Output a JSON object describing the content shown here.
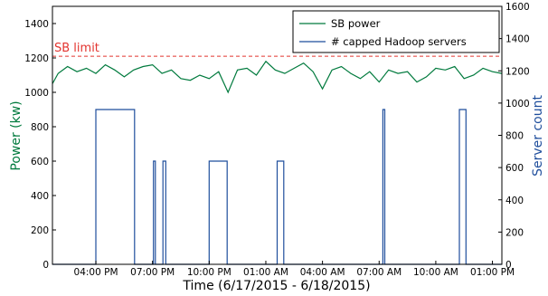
{
  "chart_data": {
    "type": "line",
    "xlabel": "Time (6/17/2015 - 6/18/2015)",
    "ylabel": "Power (kw)",
    "y2label": "Server count",
    "x_ticks": [
      "04:00 PM",
      "07:00 PM",
      "10:00 PM",
      "01:00 AM",
      "04:00 AM",
      "07:00 AM",
      "10:00 AM",
      "01:00 PM"
    ],
    "x_tick_hours": [
      16,
      19,
      22,
      25,
      28,
      31,
      34,
      37
    ],
    "xlim_hours": [
      13.7,
      37.5
    ],
    "ylim": [
      0,
      1500
    ],
    "y_ticks": [
      0,
      200,
      400,
      600,
      800,
      1000,
      1200,
      1400
    ],
    "y2lim": [
      0,
      1600
    ],
    "y2_ticks": [
      0,
      200,
      400,
      600,
      800,
      1000,
      1200,
      1400,
      1600
    ],
    "grid": false,
    "legend_position": "top-right",
    "annotation": {
      "text": "SB limit",
      "value": 1210
    },
    "colors": {
      "power": "#007a3d",
      "capped": "#1f4e9c",
      "limit": "#e3342f"
    },
    "series": [
      {
        "name": "SB power",
        "axis": "left",
        "x_hours": [
          13.7,
          14.0,
          14.5,
          15.0,
          15.5,
          16.0,
          16.5,
          17.0,
          17.5,
          18.0,
          18.5,
          19.0,
          19.5,
          20.0,
          20.5,
          21.0,
          21.5,
          22.0,
          22.5,
          23.0,
          23.5,
          24.0,
          24.5,
          25.0,
          25.5,
          26.0,
          26.5,
          27.0,
          27.5,
          28.0,
          28.5,
          29.0,
          29.5,
          30.0,
          30.5,
          31.0,
          31.5,
          32.0,
          32.5,
          33.0,
          33.5,
          34.0,
          34.5,
          35.0,
          35.5,
          36.0,
          36.5,
          37.0,
          37.5
        ],
        "values": [
          1050,
          1110,
          1150,
          1120,
          1140,
          1110,
          1160,
          1130,
          1090,
          1130,
          1150,
          1160,
          1110,
          1130,
          1080,
          1070,
          1100,
          1080,
          1120,
          1000,
          1130,
          1140,
          1100,
          1180,
          1130,
          1110,
          1140,
          1170,
          1120,
          1020,
          1130,
          1150,
          1110,
          1080,
          1120,
          1060,
          1130,
          1110,
          1120,
          1060,
          1090,
          1140,
          1130,
          1150,
          1080,
          1100,
          1140,
          1120,
          1110
        ]
      },
      {
        "name": "# capped Hadoop servers",
        "axis": "right",
        "steps": [
          {
            "start": 13.7,
            "end": 16.0,
            "value": 0
          },
          {
            "start": 16.0,
            "end": 18.05,
            "value": 960
          },
          {
            "start": 18.05,
            "end": 19.05,
            "value": 0
          },
          {
            "start": 19.05,
            "end": 19.15,
            "value": 640
          },
          {
            "start": 19.15,
            "end": 19.55,
            "value": 0
          },
          {
            "start": 19.55,
            "end": 19.7,
            "value": 640
          },
          {
            "start": 19.7,
            "end": 22.0,
            "value": 0
          },
          {
            "start": 22.0,
            "end": 22.95,
            "value": 640
          },
          {
            "start": 22.95,
            "end": 25.6,
            "value": 0
          },
          {
            "start": 25.6,
            "end": 25.95,
            "value": 640
          },
          {
            "start": 25.95,
            "end": 31.2,
            "value": 0
          },
          {
            "start": 31.2,
            "end": 31.3,
            "value": 960
          },
          {
            "start": 31.3,
            "end": 35.25,
            "value": 0
          },
          {
            "start": 35.25,
            "end": 35.6,
            "value": 960
          },
          {
            "start": 35.6,
            "end": 37.5,
            "value": 0
          }
        ]
      }
    ]
  }
}
